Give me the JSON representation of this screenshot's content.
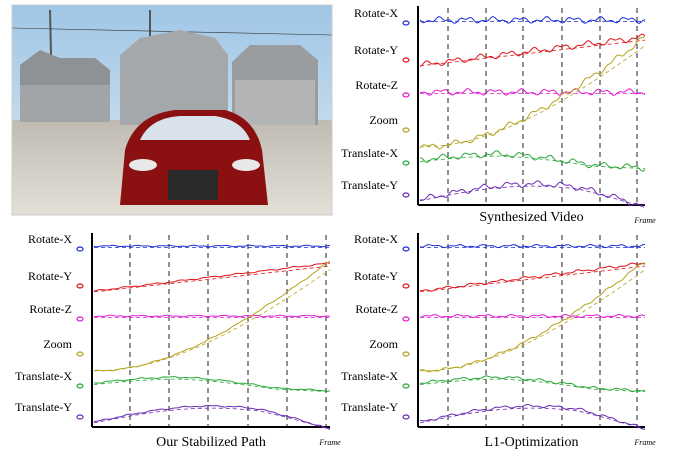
{
  "panels": [
    {
      "caption": "Synthesized Video",
      "x_label": "Frame",
      "rows": [
        "Rotate-X",
        "Rotate-Y",
        "Rotate-Z",
        "Zoom",
        "Translate-X",
        "Translate-Y"
      ]
    },
    {
      "caption": "Our Stabilized Path",
      "x_label": "Frame",
      "rows": [
        "Rotate-X",
        "Rotate-Y",
        "Rotate-Z",
        "Zoom",
        "Translate-X",
        "Translate-Y"
      ]
    },
    {
      "caption": "L1-Optimization",
      "x_label": "Frame",
      "rows": [
        "Rotate-X",
        "Rotate-Y",
        "Rotate-Z",
        "Zoom",
        "Translate-X",
        "Translate-Y"
      ]
    }
  ]
}
